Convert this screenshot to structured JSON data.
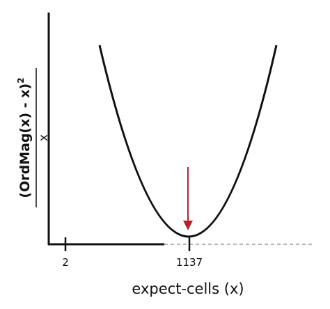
{
  "axes": {
    "y_label": {
      "numerator": "(OrdMag(x) - x)",
      "exponent": "2",
      "denominator": "x"
    },
    "x_label": "expect-cells (x)",
    "x_ticks": [
      "2",
      "1137"
    ]
  }
}
